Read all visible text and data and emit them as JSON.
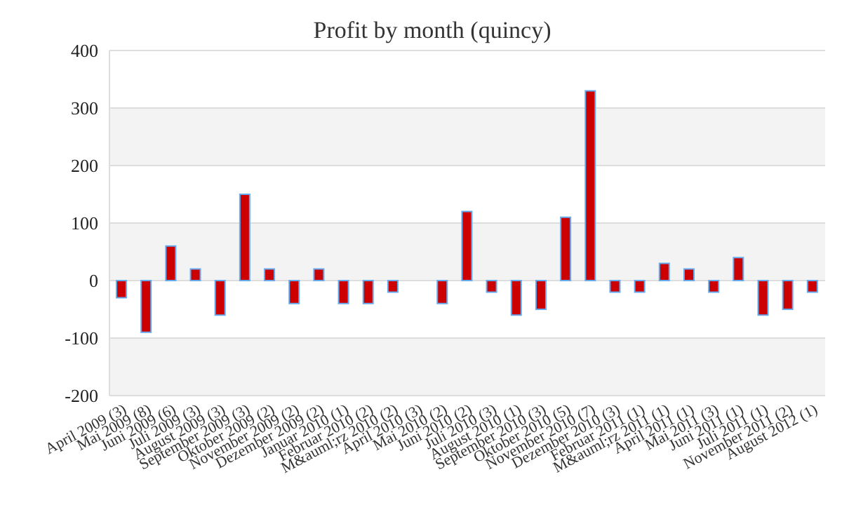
{
  "chart_data": {
    "type": "bar",
    "title": "Profit by month  (quincy)",
    "categories": [
      "April 2009 (3)",
      "Mai 2009 (8)",
      "Juni 2009 (6)",
      "Juli 2009 (3)",
      "August 2009 (3)",
      "September 2009 (3)",
      "Oktober 2009 (2)",
      "November 2009 (2)",
      "Dezember 2009 (2)",
      "Januar 2010 (1)",
      "Februar 2010 (2)",
      "M&auml;rz 2010 (2)",
      "April 2010 (3)",
      "Mai 2010 (2)",
      "Juni 2010 (2)",
      "Juli 2010 (3)",
      "August 2010 (1)",
      "September 2010 (3)",
      "Oktober 2010 (5)",
      "November 2010 (7)",
      "Dezember 2010 (3)",
      "Februar 2011 (1)",
      "M&auml;rz 2011 (1)",
      "April 2011 (1)",
      "Mai 2011 (3)",
      "Juni 2011 (1)",
      "Juli 2011 (1)",
      "November 2011 (2)",
      "August 2012 (1)"
    ],
    "values": [
      -30,
      -90,
      60,
      20,
      -60,
      150,
      20,
      -40,
      20,
      -40,
      -40,
      -20,
      0,
      -40,
      120,
      -20,
      -60,
      -50,
      110,
      330,
      -20,
      -20,
      30,
      20,
      -20,
      40,
      -60,
      -50,
      -20
    ],
    "color": "#cc0000",
    "ylim": [
      -200,
      400
    ],
    "yticks": [
      -200,
      -100,
      0,
      100,
      200,
      300,
      400
    ],
    "grid": "y"
  }
}
